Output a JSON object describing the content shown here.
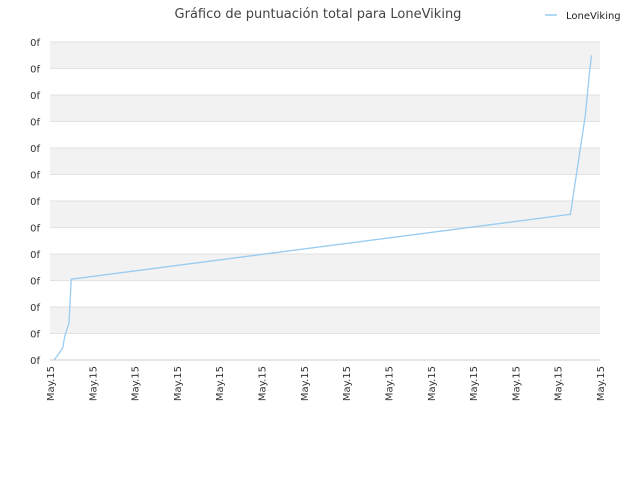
{
  "chart_data": {
    "type": "line",
    "title": "Gráfico de puntuación total para LoneViking",
    "xlabel": "",
    "ylabel": "",
    "x_tick_labels": [
      "May.15",
      "May.15",
      "May.15",
      "May.15",
      "May.15",
      "May.15",
      "May.15",
      "May.15",
      "May.15",
      "May.15",
      "May.15",
      "May.15",
      "May.15",
      "May.15"
    ],
    "y_tick_labels": [
      "0f",
      "0f",
      "0f",
      "0f",
      "0f",
      "0f",
      "0f",
      "0f",
      "0f",
      "0f",
      "0f",
      "0f",
      "0f"
    ],
    "xlim": [
      0,
      13
    ],
    "ylim": [
      0,
      12
    ],
    "grid": "horizontal-bands",
    "legend_position": "top-right",
    "series": [
      {
        "name": "LoneViking",
        "color": "#99ccf0",
        "x": [
          0.1,
          0.3,
          0.35,
          0.45,
          0.5,
          12.3,
          12.65,
          12.75,
          12.8
        ],
        "y": [
          0.0,
          0.45,
          0.9,
          1.4,
          3.05,
          5.5,
          9.2,
          10.8,
          11.5
        ]
      }
    ]
  }
}
